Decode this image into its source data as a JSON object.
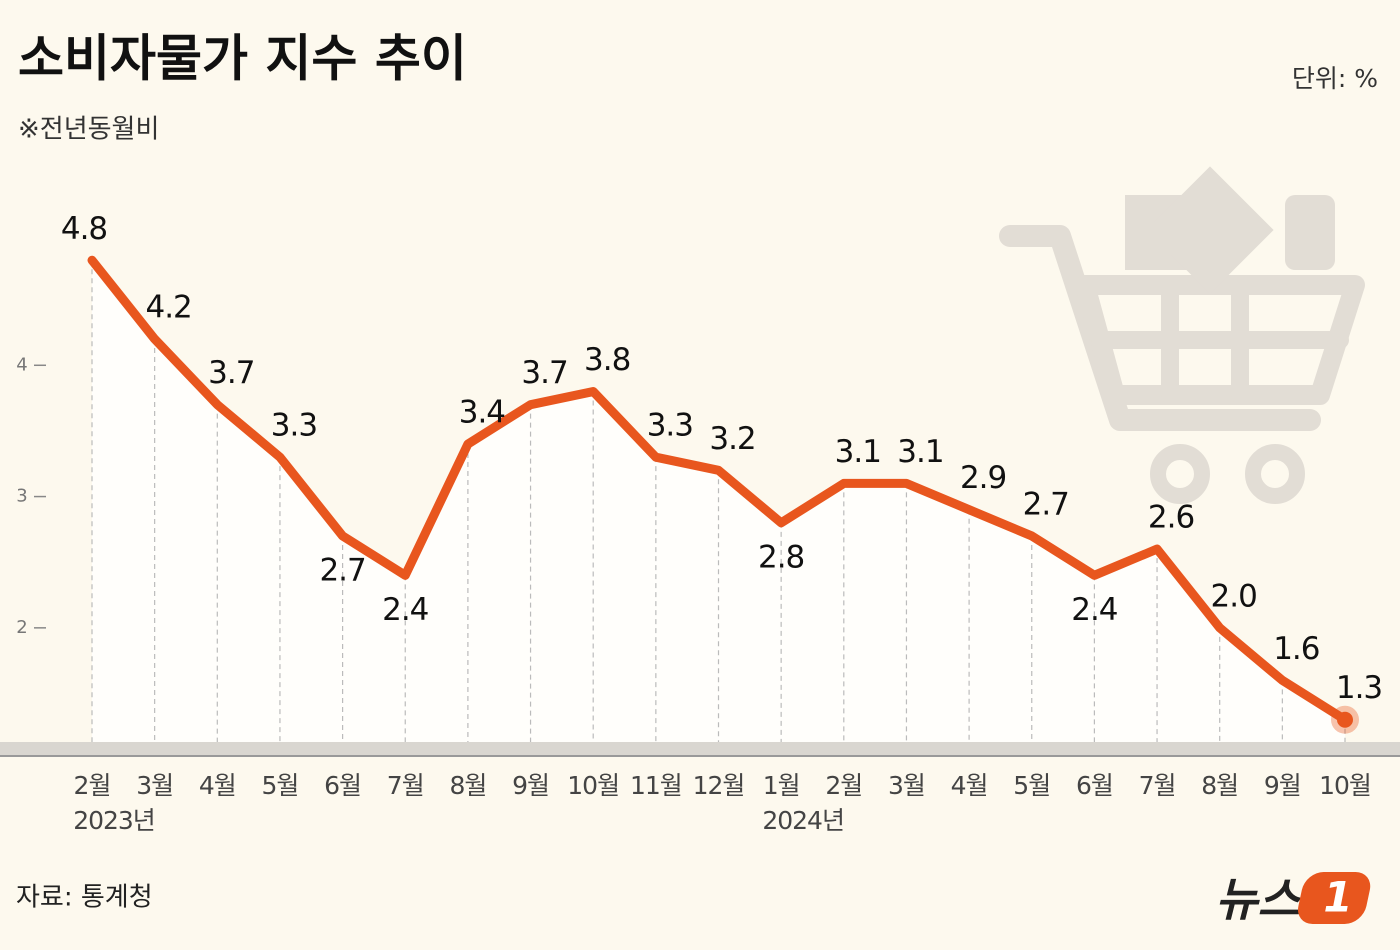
{
  "chart_data": {
    "type": "line",
    "title": "소비자물가 지수 추이",
    "subtitle": "※전년동월비",
    "unit": "단위:  %",
    "source": "자료: 통계청",
    "logo_text": "뉴스",
    "logo_mark": "1",
    "categories": [
      "2월",
      "3월",
      "4월",
      "5월",
      "6월",
      "7월",
      "8월",
      "9월",
      "10월",
      "11월",
      "12월",
      "1월",
      "2월",
      "3월",
      "4월",
      "5월",
      "6월",
      "7월",
      "8월",
      "9월",
      "10월"
    ],
    "year_labels": [
      "2023년",
      null,
      null,
      null,
      null,
      null,
      null,
      null,
      null,
      null,
      null,
      "2024년",
      null,
      null,
      null,
      null,
      null,
      null,
      null,
      null,
      null
    ],
    "values": [
      4.8,
      4.2,
      3.7,
      3.3,
      2.7,
      2.4,
      3.4,
      3.7,
      3.8,
      3.3,
      3.2,
      2.8,
      3.1,
      3.1,
      2.9,
      2.7,
      2.4,
      2.6,
      2.0,
      1.6,
      1.3
    ],
    "value_labels": [
      "4.8",
      "4.2",
      "3.7",
      "3.3",
      "2.7",
      "2.4",
      "3.4",
      "3.7",
      "3.8",
      "3.3",
      "3.2",
      "2.8",
      "3.1",
      "3.1",
      "2.9",
      "2.7",
      "2.4",
      "2.6",
      "2.0",
      "1.6",
      "1.3"
    ],
    "color": "#e8561e",
    "ylim": [
      1.1,
      5.0
    ],
    "yticks": [
      2,
      3,
      4
    ]
  }
}
